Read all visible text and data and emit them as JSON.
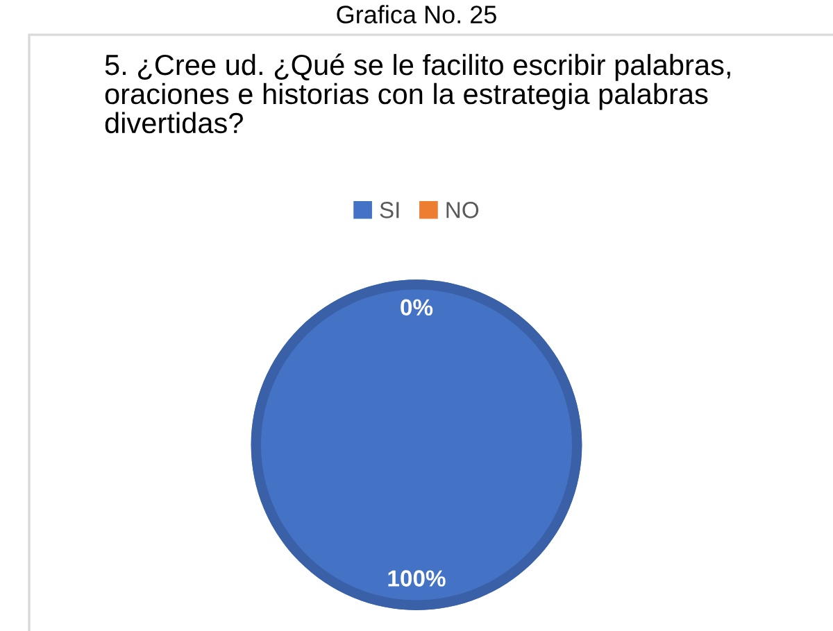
{
  "chart_data": {
    "type": "pie",
    "title": "5. ¿Cree ud. ¿Qué se le facilito escribir palabras, oraciones e historias con la estrategia palabras divertidas?",
    "annotations": [
      "Grafica No. 25"
    ],
    "categories": [
      "SI",
      "NO"
    ],
    "values": [
      100,
      0
    ],
    "colors": [
      "#4472c4",
      "#ed7d31"
    ],
    "value_labels": [
      "100%",
      "0%"
    ],
    "legend": "top"
  }
}
